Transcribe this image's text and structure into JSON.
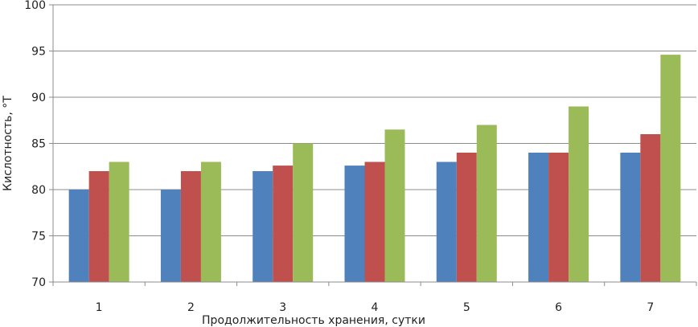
{
  "chart_data": {
    "type": "bar",
    "title": "",
    "xlabel": "Продолжительность хранения, сутки",
    "ylabel": "Кислотность, °Т",
    "categories": [
      "1",
      "2",
      "3",
      "4",
      "5",
      "6",
      "7"
    ],
    "ylim": [
      70,
      100
    ],
    "yticks": [
      70,
      75,
      80,
      85,
      90,
      95,
      100
    ],
    "grid": true,
    "legend": "none",
    "series": [
      {
        "color": "#4f81bd",
        "values": [
          80,
          80,
          82,
          82.6,
          83,
          84,
          84
        ]
      },
      {
        "color": "#c0504d",
        "values": [
          82,
          82,
          82.6,
          83,
          84,
          84,
          86
        ]
      },
      {
        "color": "#9bbb59",
        "values": [
          83,
          83,
          85,
          86.5,
          87,
          89,
          94.6
        ]
      }
    ]
  }
}
